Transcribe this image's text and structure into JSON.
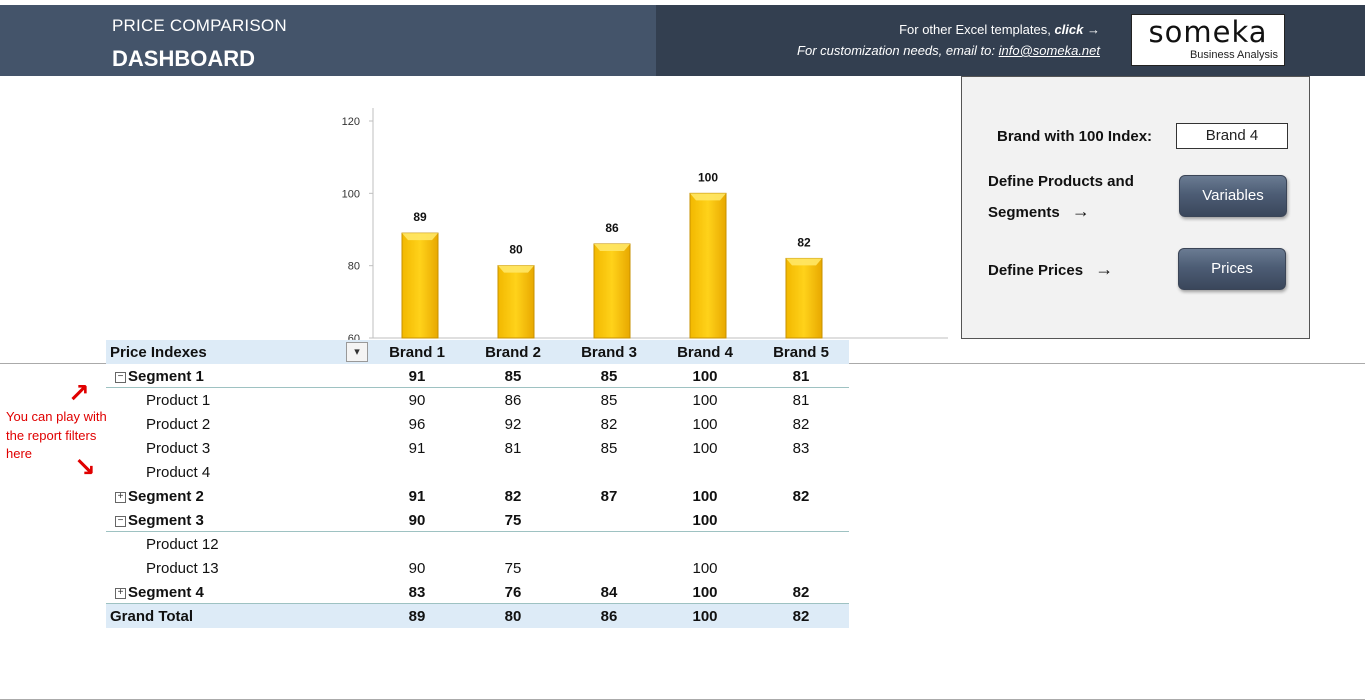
{
  "header": {
    "title_small": "PRICE COMPARISON",
    "title_large": "DASHBOARD",
    "promo_line1_text": "For other Excel templates,",
    "promo_line1_link": "click",
    "promo_line1_arrow": "→",
    "promo_line2_text": "For customization needs, email to:",
    "promo_line2_email": "info@someka.net",
    "logo_word": "someka",
    "logo_sub": "Business Analysis"
  },
  "panel": {
    "brand_index_label": "Brand with 100 Index:",
    "brand_index_value": "Brand 4",
    "define_products_line1": "Define Products and",
    "define_products_line2": "Segments",
    "define_prices_label": "Define Prices",
    "arrow": "→",
    "variables_button": "Variables",
    "prices_button": "Prices"
  },
  "chart_data": {
    "type": "bar",
    "categories": [
      "Brand 1",
      "Brand 2",
      "Brand 3",
      "Brand 4",
      "Brand 5"
    ],
    "values": [
      89,
      80,
      86,
      100,
      82
    ],
    "title": "",
    "xlabel": "",
    "ylabel": "",
    "ylim": [
      60,
      120
    ],
    "yticks": [
      60,
      80,
      100,
      120
    ],
    "bar_color": "#FFC000",
    "grid": false
  },
  "table": {
    "header": [
      "Price Indexes",
      "Brand 1",
      "Brand 2",
      "Brand 3",
      "Brand 4",
      "Brand 5"
    ],
    "filter_icon": "filter-icon",
    "rows": [
      {
        "label": "Segment 1",
        "toggle": "−",
        "values": [
          "91",
          "85",
          "85",
          "100",
          "81"
        ]
      },
      {
        "label": "Product 1",
        "values": [
          "90",
          "86",
          "85",
          "100",
          "81"
        ]
      },
      {
        "label": "Product 2",
        "values": [
          "96",
          "92",
          "82",
          "100",
          "82"
        ]
      },
      {
        "label": "Product 3",
        "values": [
          "91",
          "81",
          "85",
          "100",
          "83"
        ]
      },
      {
        "label": "Product 4",
        "values": [
          "",
          "",
          "",
          "",
          ""
        ]
      },
      {
        "label": "Segment 2",
        "toggle": "+",
        "values": [
          "91",
          "82",
          "87",
          "100",
          "82"
        ]
      },
      {
        "label": "Segment 3",
        "toggle": "−",
        "values": [
          "90",
          "75",
          "",
          "100",
          ""
        ]
      },
      {
        "label": "Product 12",
        "values": [
          "",
          "",
          "",
          "",
          ""
        ]
      },
      {
        "label": "Product 13",
        "values": [
          "90",
          "75",
          "",
          "100",
          ""
        ]
      },
      {
        "label": "Segment 4",
        "toggle": "+",
        "values": [
          "83",
          "76",
          "84",
          "100",
          "82"
        ]
      }
    ],
    "grand_total": {
      "label": "Grand Total",
      "values": [
        "89",
        "80",
        "86",
        "100",
        "82"
      ]
    }
  },
  "note": {
    "text_line1": "You can play with",
    "text_line2": "the report filters",
    "text_line3": "here",
    "arrow_up": "↗",
    "arrow_down": "↘",
    "color": "#e00000"
  }
}
